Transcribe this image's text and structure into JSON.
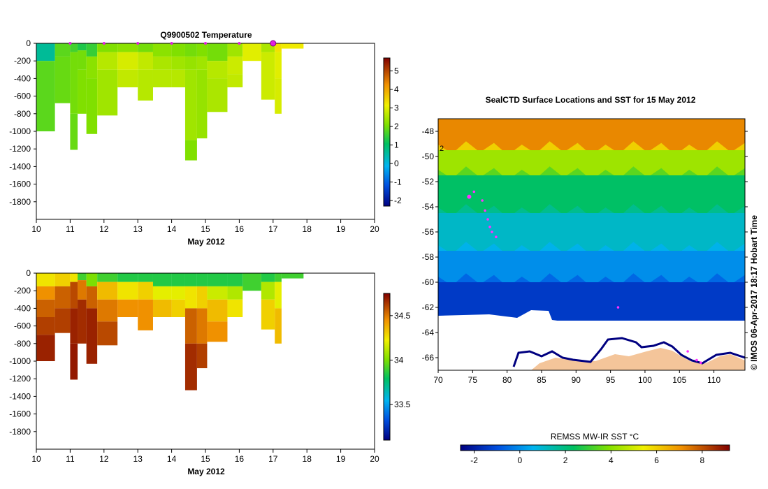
{
  "chart_data": [
    {
      "type": "heatmap",
      "title": "Q9900502  Temperature",
      "xlabel": "May 2012",
      "xticks": [
        "10",
        "11",
        "12",
        "13",
        "14",
        "15",
        "16",
        "17",
        "18",
        "19",
        "20"
      ],
      "xlim": [
        10,
        20
      ],
      "yticks": [
        "0",
        "-200",
        "-400",
        "-600",
        "-800",
        "-1000",
        "-1200",
        "-1400",
        "-1600",
        "-1800"
      ],
      "ylim": [
        -2000,
        0
      ],
      "colorbar": {
        "ticks": [
          "-2",
          "-1",
          "0",
          "1",
          "2",
          "3",
          "4",
          "5"
        ],
        "range": [
          -2.3,
          5.7
        ]
      },
      "profile_markers": [
        11,
        12,
        13,
        14,
        15,
        16,
        17
      ],
      "highlight_marker": 17,
      "profiles": [
        {
          "x0": 10.0,
          "x1": 10.55,
          "depth": 1000,
          "layers": [
            [
              0,
              200,
              0.6
            ],
            [
              200,
              1000,
              1.8
            ]
          ]
        },
        {
          "x0": 10.55,
          "x1": 11.0,
          "depth": 680,
          "layers": [
            [
              0,
              150,
              1.8
            ],
            [
              150,
              680,
              1.9
            ]
          ]
        },
        {
          "x0": 11.0,
          "x1": 11.22,
          "depth": 1210,
          "layers": [
            [
              0,
              100,
              1.6
            ],
            [
              100,
              800,
              2.0
            ],
            [
              800,
              1210,
              1.9
            ]
          ]
        },
        {
          "x0": 11.22,
          "x1": 11.48,
          "depth": 800,
          "layers": [
            [
              0,
              80,
              1.3
            ],
            [
              80,
              300,
              2.0
            ],
            [
              300,
              800,
              2.1
            ]
          ]
        },
        {
          "x0": 11.48,
          "x1": 11.8,
          "depth": 1030,
          "layers": [
            [
              0,
              150,
              1.5
            ],
            [
              150,
              400,
              2.2
            ],
            [
              400,
              1030,
              2.1
            ]
          ]
        },
        {
          "x0": 11.8,
          "x1": 12.4,
          "depth": 820,
          "layers": [
            [
              0,
              100,
              2.1
            ],
            [
              100,
              300,
              2.6
            ],
            [
              300,
              820,
              2.4
            ]
          ]
        },
        {
          "x0": 12.4,
          "x1": 13.0,
          "depth": 500,
          "layers": [
            [
              0,
              100,
              2.2
            ],
            [
              100,
              300,
              2.9
            ],
            [
              300,
              500,
              2.7
            ]
          ]
        },
        {
          "x0": 13.0,
          "x1": 13.45,
          "depth": 650,
          "layers": [
            [
              0,
              100,
              2.0
            ],
            [
              100,
              300,
              2.7
            ],
            [
              300,
              650,
              2.6
            ]
          ]
        },
        {
          "x0": 13.45,
          "x1": 14.0,
          "depth": 500,
          "layers": [
            [
              0,
              150,
              2.2
            ],
            [
              150,
              300,
              2.5
            ],
            [
              300,
              500,
              2.6
            ]
          ]
        },
        {
          "x0": 14.0,
          "x1": 14.4,
          "depth": 500,
          "layers": [
            [
              0,
              150,
              2.1
            ],
            [
              150,
              300,
              2.4
            ],
            [
              300,
              500,
              2.6
            ]
          ]
        },
        {
          "x0": 14.4,
          "x1": 14.75,
          "depth": 1330,
          "layers": [
            [
              0,
              150,
              2.0
            ],
            [
              150,
              300,
              2.3
            ],
            [
              300,
              1100,
              2.4
            ],
            [
              1100,
              1330,
              2.1
            ]
          ]
        },
        {
          "x0": 14.75,
          "x1": 15.05,
          "depth": 1080,
          "layers": [
            [
              0,
              150,
              2.1
            ],
            [
              150,
              300,
              2.4
            ],
            [
              300,
              1080,
              2.3
            ]
          ]
        },
        {
          "x0": 15.05,
          "x1": 15.65,
          "depth": 780,
          "layers": [
            [
              0,
              200,
              2.0
            ],
            [
              200,
              400,
              2.6
            ],
            [
              400,
              780,
              2.5
            ]
          ]
        },
        {
          "x0": 15.65,
          "x1": 16.1,
          "depth": 500,
          "layers": [
            [
              0,
              150,
              2.4
            ],
            [
              150,
              350,
              2.8
            ],
            [
              350,
              500,
              2.7
            ]
          ]
        },
        {
          "x0": 16.1,
          "x1": 16.65,
          "depth": 200,
          "layers": [
            [
              0,
              200,
              3.0
            ]
          ]
        },
        {
          "x0": 16.65,
          "x1": 17.05,
          "depth": 640,
          "layers": [
            [
              0,
              100,
              2.5
            ],
            [
              100,
              640,
              2.8
            ]
          ]
        },
        {
          "x0": 17.05,
          "x1": 17.25,
          "depth": 800,
          "layers": [
            [
              0,
              100,
              3.3
            ],
            [
              100,
              400,
              3.0
            ],
            [
              400,
              800,
              2.9
            ]
          ]
        },
        {
          "x0": 17.25,
          "x1": 17.9,
          "depth": 60,
          "layers": [
            [
              0,
              60,
              3.2
            ]
          ]
        }
      ]
    },
    {
      "type": "heatmap",
      "title": "",
      "xlabel": "May 2012",
      "xticks": [
        "10",
        "11",
        "12",
        "13",
        "14",
        "15",
        "16",
        "17",
        "18",
        "19",
        "20"
      ],
      "xlim": [
        10,
        20
      ],
      "yticks": [
        "0",
        "-200",
        "-400",
        "-600",
        "-800",
        "-1000",
        "-1200",
        "-1400",
        "-1600",
        "-1800"
      ],
      "ylim": [
        -2000,
        0
      ],
      "colorbar": {
        "ticks": [
          "33.5",
          "34",
          "34.5"
        ],
        "range": [
          33.1,
          34.75
        ]
      },
      "profiles": [
        {
          "x0": 10.0,
          "x1": 10.55,
          "depth": 1000,
          "layers": [
            [
              0,
              150,
              34.25
            ],
            [
              150,
              300,
              34.45
            ],
            [
              300,
              500,
              34.55
            ],
            [
              500,
              700,
              34.62
            ],
            [
              700,
              1000,
              34.68
            ]
          ]
        },
        {
          "x0": 10.55,
          "x1": 11.0,
          "depth": 680,
          "layers": [
            [
              0,
              150,
              34.3
            ],
            [
              150,
              400,
              34.55
            ],
            [
              400,
              680,
              34.62
            ]
          ]
        },
        {
          "x0": 11.0,
          "x1": 11.22,
          "depth": 1210,
          "layers": [
            [
              0,
              100,
              34.25
            ],
            [
              100,
              400,
              34.6
            ],
            [
              400,
              800,
              34.68
            ],
            [
              800,
              1210,
              34.7
            ]
          ]
        },
        {
          "x0": 11.22,
          "x1": 11.48,
          "depth": 800,
          "layers": [
            [
              0,
              80,
              33.9
            ],
            [
              80,
              300,
              34.5
            ],
            [
              300,
              800,
              34.66
            ]
          ]
        },
        {
          "x0": 11.48,
          "x1": 11.8,
          "depth": 1030,
          "layers": [
            [
              0,
              150,
              34.0
            ],
            [
              150,
              400,
              34.55
            ],
            [
              400,
              1030,
              34.68
            ]
          ]
        },
        {
          "x0": 11.8,
          "x1": 12.4,
          "depth": 820,
          "layers": [
            [
              0,
              100,
              33.9
            ],
            [
              100,
              300,
              34.35
            ],
            [
              300,
              550,
              34.5
            ],
            [
              550,
              820,
              34.6
            ]
          ]
        },
        {
          "x0": 12.4,
          "x1": 13.0,
          "depth": 500,
          "layers": [
            [
              0,
              100,
              33.85
            ],
            [
              100,
              300,
              34.25
            ],
            [
              300,
              500,
              34.45
            ]
          ]
        },
        {
          "x0": 13.0,
          "x1": 13.45,
          "depth": 650,
          "layers": [
            [
              0,
              100,
              33.85
            ],
            [
              100,
              300,
              34.3
            ],
            [
              300,
              650,
              34.45
            ]
          ]
        },
        {
          "x0": 13.45,
          "x1": 14.0,
          "depth": 500,
          "layers": [
            [
              0,
              150,
              33.85
            ],
            [
              150,
              300,
              34.2
            ],
            [
              300,
              500,
              34.35
            ]
          ]
        },
        {
          "x0": 14.0,
          "x1": 14.4,
          "depth": 500,
          "layers": [
            [
              0,
              150,
              33.85
            ],
            [
              150,
              300,
              34.2
            ],
            [
              300,
              500,
              34.3
            ]
          ]
        },
        {
          "x0": 14.4,
          "x1": 14.75,
          "depth": 1330,
          "layers": [
            [
              0,
              150,
              33.85
            ],
            [
              150,
              400,
              34.25
            ],
            [
              400,
              800,
              34.55
            ],
            [
              800,
              1330,
              34.66
            ]
          ]
        },
        {
          "x0": 14.75,
          "x1": 15.05,
          "depth": 1080,
          "layers": [
            [
              0,
              150,
              33.85
            ],
            [
              150,
              400,
              34.3
            ],
            [
              400,
              800,
              34.5
            ],
            [
              800,
              1080,
              34.62
            ]
          ]
        },
        {
          "x0": 15.05,
          "x1": 15.65,
          "depth": 780,
          "layers": [
            [
              0,
              150,
              33.85
            ],
            [
              150,
              300,
              34.15
            ],
            [
              300,
              550,
              34.35
            ],
            [
              550,
              780,
              34.45
            ]
          ]
        },
        {
          "x0": 15.65,
          "x1": 16.1,
          "depth": 500,
          "layers": [
            [
              0,
              150,
              33.85
            ],
            [
              150,
              300,
              34.1
            ],
            [
              300,
              500,
              34.25
            ]
          ]
        },
        {
          "x0": 16.1,
          "x1": 16.65,
          "depth": 200,
          "layers": [
            [
              0,
              200,
              33.9
            ]
          ]
        },
        {
          "x0": 16.65,
          "x1": 17.05,
          "depth": 640,
          "layers": [
            [
              0,
              100,
              33.85
            ],
            [
              100,
              300,
              34.1
            ],
            [
              300,
              640,
              34.3
            ]
          ]
        },
        {
          "x0": 17.05,
          "x1": 17.25,
          "depth": 800,
          "layers": [
            [
              0,
              100,
              33.9
            ],
            [
              100,
              400,
              34.2
            ],
            [
              400,
              800,
              34.35
            ]
          ]
        },
        {
          "x0": 17.25,
          "x1": 17.9,
          "depth": 60,
          "layers": [
            [
              0,
              60,
              33.9
            ]
          ]
        }
      ]
    },
    {
      "type": "heatmap",
      "title": "SealCTD Surface Locations and SST for 15 May 2012",
      "xticks": [
        "70",
        "75",
        "80",
        "85",
        "90",
        "95",
        "100",
        "105",
        "110"
      ],
      "xlim": [
        70,
        114.5
      ],
      "yticks": [
        "-48",
        "-50",
        "-52",
        "-54",
        "-56",
        "-58",
        "-60",
        "-62",
        "-64",
        "-66"
      ],
      "ylim": [
        -67,
        -47
      ],
      "colorbar": {
        "label": "REMSS MW-IR SST °C",
        "ticks": [
          "-2",
          "0",
          "2",
          "4",
          "6",
          "8"
        ],
        "range": [
          -2.6,
          9.2
        ]
      },
      "sst_zones": [
        {
          "lat_top": -47,
          "lat_bottom": -49.5,
          "sst": 7.2
        },
        {
          "lat_top": -49.5,
          "lat_bottom": -51.5,
          "sst": 4.3
        },
        {
          "lat_top": -51.5,
          "lat_bottom": -54.5,
          "sst": 2.3
        },
        {
          "lat_top": -54.5,
          "lat_bottom": -57.5,
          "sst": 1.1
        },
        {
          "lat_top": -57.5,
          "lat_bottom": -60,
          "sst": 0.0
        },
        {
          "lat_top": -60,
          "lat_bottom": -63,
          "sst": -1.4
        }
      ],
      "seal_locations": [
        [
          74.5,
          -53.2
        ],
        [
          75.2,
          -52.8
        ],
        [
          76.4,
          -53.5
        ],
        [
          76.8,
          -54.3
        ],
        [
          77.2,
          -55.0
        ],
        [
          77.5,
          -55.6
        ],
        [
          77.8,
          -56.0
        ],
        [
          78.4,
          -56.4
        ],
        [
          96.1,
          -62.0
        ],
        [
          106.2,
          -65.5
        ],
        [
          107.5,
          -66.2
        ],
        [
          108.1,
          -66.4
        ]
      ],
      "annotations": [
        "2"
      ],
      "timestamp": "© IMOS 06-Apr-2017 18:17 Hobart Time"
    }
  ]
}
